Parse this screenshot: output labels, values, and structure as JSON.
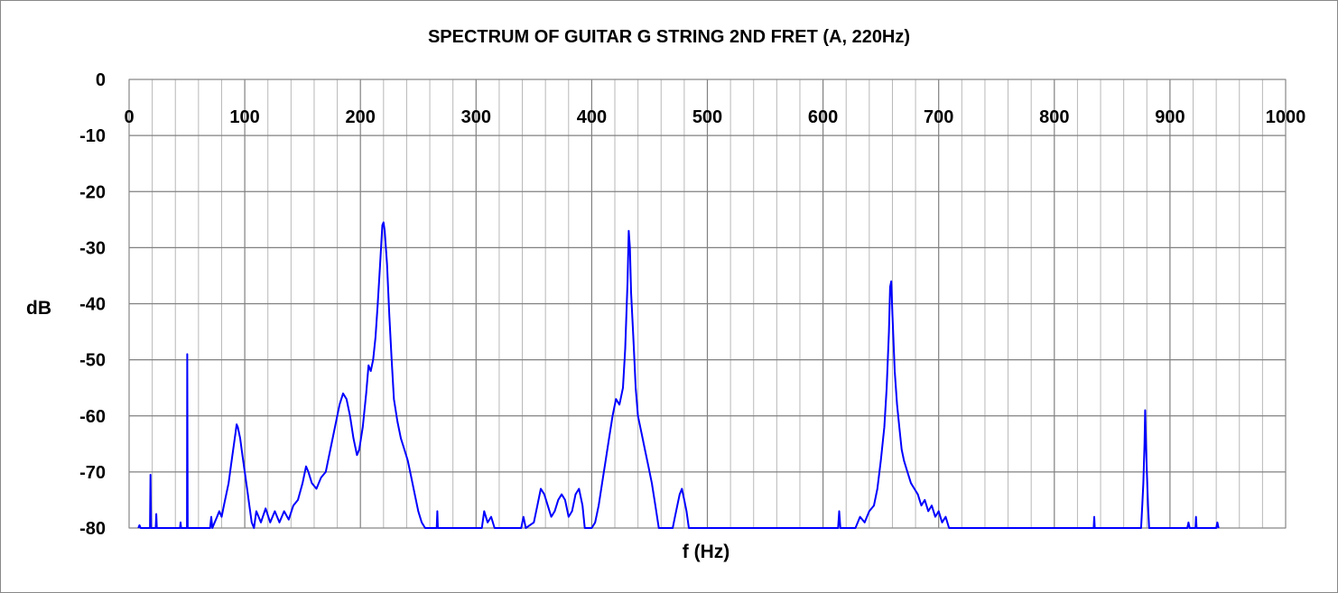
{
  "chart_data": {
    "type": "line",
    "title": "SPECTRUM OF GUITAR G STRING 2ND FRET (A, 220Hz)",
    "xlabel": "f (Hz)",
    "ylabel": "dB",
    "xlim": [
      0,
      1000
    ],
    "ylim": [
      -80,
      0
    ],
    "x_ticks": [
      0,
      100,
      200,
      300,
      400,
      500,
      600,
      700,
      800,
      900,
      1000
    ],
    "y_ticks": [
      0,
      -10,
      -20,
      -30,
      -40,
      -50,
      -60,
      -70,
      -80
    ],
    "x_minor_step": 20,
    "grid": true,
    "line_color": "#0000ff",
    "series": [
      {
        "values": [
          [
            8,
            -80
          ],
          [
            9,
            -79.5
          ],
          [
            10,
            -80
          ],
          [
            18,
            -80
          ],
          [
            18.5,
            -70.5
          ],
          [
            19,
            -80
          ],
          [
            23,
            -80
          ],
          [
            23.5,
            -77.5
          ],
          [
            24,
            -80
          ],
          [
            44,
            -80
          ],
          [
            44.5,
            -79
          ],
          [
            45,
            -80
          ],
          [
            50,
            -80
          ],
          [
            50.3,
            -49
          ],
          [
            50.7,
            -80
          ],
          [
            70,
            -80
          ],
          [
            71,
            -78
          ],
          [
            72,
            -80
          ],
          [
            74,
            -79
          ],
          [
            76,
            -78
          ],
          [
            78,
            -77
          ],
          [
            80,
            -78
          ],
          [
            82,
            -76
          ],
          [
            84,
            -74
          ],
          [
            86,
            -72
          ],
          [
            88,
            -69
          ],
          [
            90,
            -66
          ],
          [
            92,
            -63
          ],
          [
            93,
            -61.5
          ],
          [
            94,
            -62
          ],
          [
            96,
            -64
          ],
          [
            98,
            -67
          ],
          [
            100,
            -70
          ],
          [
            102,
            -73
          ],
          [
            104,
            -76
          ],
          [
            106,
            -79
          ],
          [
            108,
            -80
          ],
          [
            110,
            -77
          ],
          [
            114,
            -79
          ],
          [
            118,
            -76.5
          ],
          [
            122,
            -79
          ],
          [
            126,
            -77
          ],
          [
            130,
            -79
          ],
          [
            134,
            -77
          ],
          [
            138,
            -78.5
          ],
          [
            142,
            -76
          ],
          [
            146,
            -75
          ],
          [
            150,
            -72
          ],
          [
            153,
            -69
          ],
          [
            155,
            -70
          ],
          [
            158,
            -72
          ],
          [
            162,
            -73
          ],
          [
            166,
            -71
          ],
          [
            170,
            -70
          ],
          [
            174,
            -66
          ],
          [
            178,
            -62
          ],
          [
            182,
            -58
          ],
          [
            185,
            -56
          ],
          [
            188,
            -57
          ],
          [
            191,
            -60
          ],
          [
            194,
            -64
          ],
          [
            197,
            -67
          ],
          [
            199,
            -66
          ],
          [
            202,
            -62
          ],
          [
            205,
            -56
          ],
          [
            207,
            -51
          ],
          [
            209,
            -52
          ],
          [
            211,
            -50
          ],
          [
            213,
            -46
          ],
          [
            215,
            -40
          ],
          [
            217,
            -33
          ],
          [
            219,
            -26
          ],
          [
            220,
            -25.5
          ],
          [
            221,
            -27
          ],
          [
            223,
            -33
          ],
          [
            225,
            -42
          ],
          [
            227,
            -50
          ],
          [
            229,
            -57
          ],
          [
            232,
            -61
          ],
          [
            235,
            -64
          ],
          [
            238,
            -66
          ],
          [
            241,
            -68
          ],
          [
            244,
            -71
          ],
          [
            247,
            -74
          ],
          [
            250,
            -77
          ],
          [
            253,
            -79
          ],
          [
            256,
            -80
          ],
          [
            266,
            -80
          ],
          [
            266.5,
            -77
          ],
          [
            267,
            -80
          ],
          [
            305,
            -80
          ],
          [
            307,
            -77
          ],
          [
            310,
            -79
          ],
          [
            313,
            -78
          ],
          [
            316,
            -80
          ],
          [
            339,
            -80
          ],
          [
            341,
            -78
          ],
          [
            343,
            -80
          ],
          [
            350,
            -79
          ],
          [
            353,
            -76
          ],
          [
            356,
            -73
          ],
          [
            359,
            -74
          ],
          [
            362,
            -76
          ],
          [
            365,
            -78
          ],
          [
            368,
            -77
          ],
          [
            371,
            -75
          ],
          [
            374,
            -74
          ],
          [
            377,
            -75
          ],
          [
            380,
            -78
          ],
          [
            383,
            -77
          ],
          [
            386,
            -74
          ],
          [
            389,
            -73
          ],
          [
            392,
            -76
          ],
          [
            394,
            -80
          ],
          [
            400,
            -80
          ],
          [
            403,
            -79
          ],
          [
            406,
            -76
          ],
          [
            409,
            -72
          ],
          [
            412,
            -68
          ],
          [
            415,
            -64
          ],
          [
            418,
            -60
          ],
          [
            421,
            -57
          ],
          [
            424,
            -58
          ],
          [
            427,
            -55
          ],
          [
            429,
            -48
          ],
          [
            431,
            -36
          ],
          [
            432,
            -27
          ],
          [
            433,
            -30
          ],
          [
            434,
            -38
          ],
          [
            436,
            -46
          ],
          [
            438,
            -55
          ],
          [
            440,
            -60
          ],
          [
            443,
            -63
          ],
          [
            446,
            -66
          ],
          [
            449,
            -69
          ],
          [
            452,
            -72
          ],
          [
            455,
            -76
          ],
          [
            458,
            -80
          ],
          [
            470,
            -80
          ],
          [
            472,
            -78
          ],
          [
            474,
            -76
          ],
          [
            476,
            -74
          ],
          [
            478,
            -73
          ],
          [
            480,
            -75
          ],
          [
            482,
            -77
          ],
          [
            484,
            -80
          ],
          [
            613,
            -80
          ],
          [
            614,
            -77
          ],
          [
            615,
            -80
          ],
          [
            628,
            -80
          ],
          [
            632,
            -78
          ],
          [
            636,
            -79
          ],
          [
            640,
            -77
          ],
          [
            644,
            -76
          ],
          [
            647,
            -73
          ],
          [
            650,
            -68
          ],
          [
            653,
            -62
          ],
          [
            655,
            -55
          ],
          [
            657,
            -45
          ],
          [
            658,
            -37
          ],
          [
            659,
            -36
          ],
          [
            660,
            -42
          ],
          [
            662,
            -52
          ],
          [
            664,
            -58
          ],
          [
            666,
            -62
          ],
          [
            668,
            -66
          ],
          [
            670,
            -68
          ],
          [
            673,
            -70
          ],
          [
            676,
            -72
          ],
          [
            679,
            -73
          ],
          [
            682,
            -74
          ],
          [
            685,
            -76
          ],
          [
            688,
            -75
          ],
          [
            691,
            -77
          ],
          [
            694,
            -76
          ],
          [
            697,
            -78
          ],
          [
            700,
            -77
          ],
          [
            703,
            -79
          ],
          [
            706,
            -78
          ],
          [
            709,
            -80
          ],
          [
            834,
            -80
          ],
          [
            834.5,
            -78
          ],
          [
            835,
            -80
          ],
          [
            875,
            -80
          ],
          [
            876,
            -76
          ],
          [
            877,
            -72
          ],
          [
            878,
            -65
          ],
          [
            878.5,
            -59
          ],
          [
            879,
            -63
          ],
          [
            880,
            -70
          ],
          [
            881,
            -76
          ],
          [
            882,
            -80
          ],
          [
            915,
            -80
          ],
          [
            916,
            -79
          ],
          [
            917,
            -80
          ],
          [
            922,
            -80
          ],
          [
            922.5,
            -78
          ],
          [
            923,
            -80
          ],
          [
            940,
            -80
          ],
          [
            941,
            -79
          ],
          [
            942,
            -80
          ]
        ]
      }
    ]
  }
}
